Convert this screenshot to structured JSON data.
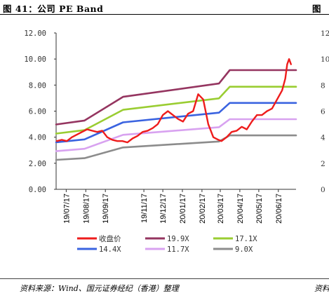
{
  "figure": {
    "title": "图 41：公司 PE Band",
    "title_right_fragment": "图",
    "source": "资料来源：Wind、国元证券经纪（香港）整理",
    "source_right_fragment": "资料",
    "right_axis_fragment": [
      "12",
      "10",
      "8",
      "6",
      "4",
      "2",
      "0"
    ]
  },
  "chart_data": {
    "type": "line",
    "title": "",
    "xlabel": "",
    "ylabel": "",
    "ylim": [
      0,
      12
    ],
    "yticks": [
      "0.00",
      "2.00",
      "4.00",
      "6.00",
      "8.00",
      "10.00",
      "12.00"
    ],
    "xlim": [
      "2019-07-01",
      "2020-07-15"
    ],
    "xticks": [
      "19/07/17",
      "19/08/17",
      "19/09/17",
      "19/11/17",
      "19/12/17",
      "20/01/17",
      "20/02/17",
      "20/03/17",
      "20/04/17",
      "20/05/17",
      "20/06/17"
    ],
    "xtick_dates": [
      "2019-07-17",
      "2019-08-17",
      "2019-09-17",
      "2019-11-17",
      "2019-12-17",
      "2020-01-17",
      "2020-02-17",
      "2020-03-17",
      "2020-04-17",
      "2020-05-17",
      "2020-06-17"
    ],
    "grid": false,
    "legend_position": "bottom",
    "series": [
      {
        "name": "收盘价",
        "color": "#ee1c1c",
        "x": [
          "2019-07-02",
          "2019-07-10",
          "2019-07-18",
          "2019-07-26",
          "2019-08-03",
          "2019-08-11",
          "2019-08-19",
          "2019-08-27",
          "2019-09-04",
          "2019-09-12",
          "2019-09-20",
          "2019-09-28",
          "2019-10-06",
          "2019-10-14",
          "2019-10-22",
          "2019-10-30",
          "2019-11-07",
          "2019-11-15",
          "2019-11-23",
          "2019-12-01",
          "2019-12-09",
          "2019-12-17",
          "2019-12-25",
          "2020-01-02",
          "2020-01-10",
          "2020-01-18",
          "2020-01-26",
          "2020-02-03",
          "2020-02-11",
          "2020-02-19",
          "2020-02-27",
          "2020-03-06",
          "2020-03-14",
          "2020-03-19",
          "2020-03-27",
          "2020-04-04",
          "2020-04-12",
          "2020-04-20",
          "2020-04-28",
          "2020-05-06",
          "2020-05-14",
          "2020-05-22",
          "2020-05-30",
          "2020-06-07",
          "2020-06-15",
          "2020-06-23",
          "2020-06-28",
          "2020-07-01",
          "2020-07-04",
          "2020-07-07"
        ],
        "values": [
          3.7,
          3.8,
          3.7,
          4.0,
          4.2,
          4.4,
          4.6,
          4.5,
          4.4,
          4.5,
          4.0,
          3.8,
          3.7,
          3.7,
          3.6,
          3.9,
          4.1,
          4.4,
          4.5,
          4.7,
          5.0,
          5.7,
          6.0,
          5.7,
          5.4,
          5.2,
          5.8,
          6.0,
          7.3,
          6.9,
          5.0,
          4.0,
          3.8,
          3.7,
          4.0,
          4.4,
          4.5,
          4.8,
          4.6,
          5.2,
          5.7,
          5.7,
          6.0,
          6.2,
          6.9,
          7.6,
          8.5,
          9.6,
          10.0,
          9.6
        ]
      },
      {
        "name": "19.9X",
        "color": "#953560",
        "x": [
          "2019-07-01",
          "2019-08-15",
          "2019-10-15",
          "2020-03-15",
          "2020-04-01",
          "2020-07-15"
        ],
        "values": [
          4.98,
          5.28,
          7.1,
          8.12,
          9.15,
          9.15
        ]
      },
      {
        "name": "17.1X",
        "color": "#9acd32",
        "x": [
          "2019-07-01",
          "2019-08-15",
          "2019-10-15",
          "2020-03-15",
          "2020-04-01",
          "2020-07-15"
        ],
        "values": [
          4.28,
          4.54,
          6.1,
          6.98,
          7.87,
          7.87
        ]
      },
      {
        "name": "14.4X",
        "color": "#3a63e0",
        "x": [
          "2019-07-01",
          "2019-08-15",
          "2019-10-15",
          "2020-03-15",
          "2020-04-01",
          "2020-07-15"
        ],
        "values": [
          3.61,
          3.83,
          5.14,
          5.88,
          6.63,
          6.63
        ]
      },
      {
        "name": "11.7X",
        "color": "#d8a2f0",
        "x": [
          "2019-07-01",
          "2019-08-15",
          "2019-10-15",
          "2020-03-15",
          "2020-04-01",
          "2020-07-15"
        ],
        "values": [
          2.93,
          3.11,
          4.18,
          4.77,
          5.38,
          5.38
        ]
      },
      {
        "name": "9.0X",
        "color": "#8c8c8c",
        "x": [
          "2019-07-01",
          "2019-08-15",
          "2019-10-15",
          "2020-03-15",
          "2020-04-01",
          "2020-07-15"
        ],
        "values": [
          2.26,
          2.39,
          3.21,
          3.67,
          4.14,
          4.14
        ]
      }
    ],
    "legend_order": [
      "收盘价",
      "19.9X",
      "17.1X",
      "14.4X",
      "11.7X",
      "9.0X"
    ]
  }
}
